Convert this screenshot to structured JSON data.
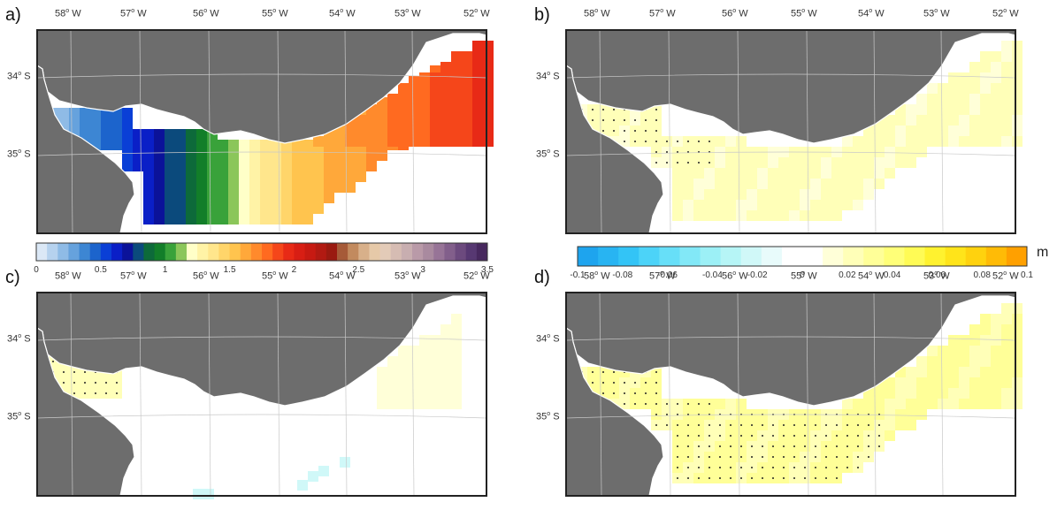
{
  "panels": [
    {
      "label": "a)",
      "lon_labels": [
        "58",
        "57",
        "56",
        "55",
        "54",
        "53",
        "52"
      ],
      "lat_labels": [
        "34",
        "35"
      ]
    },
    {
      "label": "b)",
      "lon_labels": [
        "58",
        "57",
        "56",
        "55",
        "54",
        "53",
        "52"
      ],
      "lat_labels": [
        "34",
        "35"
      ]
    },
    {
      "label": "c)",
      "lon_labels": [
        "58",
        "57",
        "56",
        "55",
        "54",
        "53",
        "52"
      ],
      "lat_labels": [
        "34",
        "35"
      ]
    },
    {
      "label": "d)",
      "lon_labels": [
        "58",
        "57",
        "56",
        "55",
        "54",
        "53",
        "52"
      ],
      "lat_labels": [
        "34",
        "35"
      ]
    }
  ],
  "lon_suffix": "W",
  "lat_suffix": "S",
  "colorbar_a": {
    "ticks": [
      "0",
      "0.5",
      "1",
      "1.5",
      "2",
      "2.5",
      "3",
      "3.5"
    ],
    "min": 0,
    "max": 3.5,
    "colors": [
      "#dbe8f6",
      "#b6d2ee",
      "#8fbbe6",
      "#66a2dd",
      "#3d86d3",
      "#1c64cc",
      "#0a3fd6",
      "#0a1fc7",
      "#0b1299",
      "#0b4a7c",
      "#0d6a3a",
      "#127e29",
      "#39a23a",
      "#8bc65a",
      "#ffffc8",
      "#fff3a6",
      "#ffe68c",
      "#ffd56a",
      "#ffc44e",
      "#ffa83a",
      "#ff8a2c",
      "#ff6a20",
      "#f5461a",
      "#e82a16",
      "#d81e14",
      "#c71a12",
      "#b21a12",
      "#9a1a10",
      "#a65a38",
      "#c28a5e",
      "#d8b08a",
      "#e6c9a8",
      "#e3cbb8",
      "#d6bcb3",
      "#c8aeb0",
      "#b99aa8",
      "#a98a9f",
      "#977497",
      "#825f8b",
      "#6c4a7e",
      "#573872",
      "#47285e"
    ]
  },
  "colorbar_b": {
    "ticks": [
      "-0.1",
      "-0.08",
      "-0.06",
      "-0.04",
      "-0.02",
      "0",
      "0.02",
      "0.04",
      "0.06",
      "0.08",
      "0.1"
    ],
    "min": -0.1,
    "max": 0.1,
    "unit": "m",
    "colors": [
      "#1ea4ee",
      "#28b4f2",
      "#33c4f6",
      "#4cd3f8",
      "#67dff8",
      "#82e8f7",
      "#9cf0f6",
      "#b6f5f6",
      "#d0f8f8",
      "#e8fbfb",
      "#ffffff",
      "#ffffff",
      "#ffffd8",
      "#ffffb8",
      "#ffff98",
      "#ffff78",
      "#fffb55",
      "#fff22f",
      "#ffe41a",
      "#ffd20e",
      "#ffbb06",
      "#ffa000"
    ]
  }
}
